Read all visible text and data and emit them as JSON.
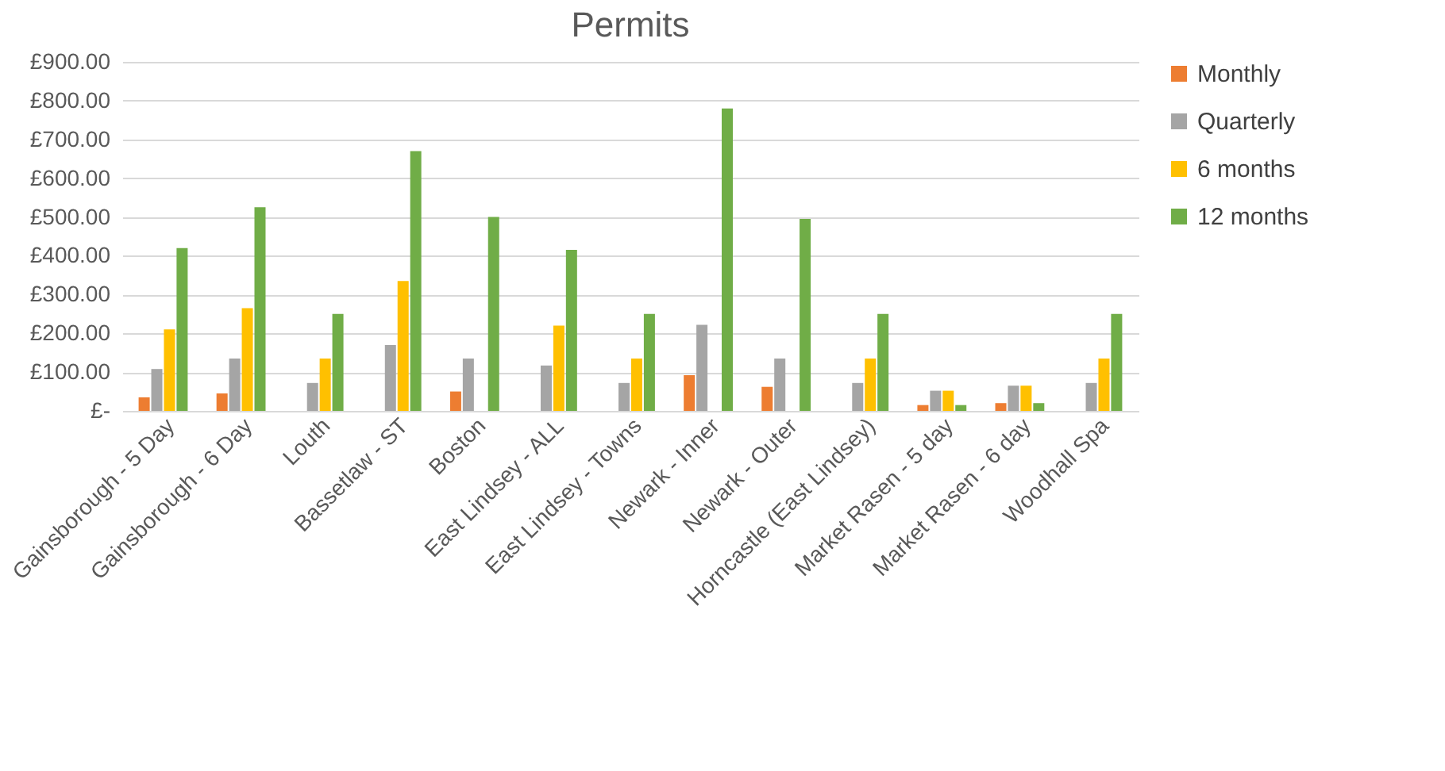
{
  "chart_data": {
    "type": "bar",
    "title": "Permits",
    "categories": [
      "Gainsborough - 5 Day",
      "Gainsborough - 6 Day",
      "Louth",
      "Bassetlaw - ST",
      "Boston",
      "East Lindsey - ALL",
      "East Lindsey - Towns",
      "Newark - Inner",
      "Newark - Outer",
      "Horncastle (East Lindsey)",
      "Market Rasen - 5 day",
      "Market Rasen - 6 day",
      "Woodhall Spa"
    ],
    "series": [
      {
        "name": "Monthly",
        "color": "#ed7d31",
        "values": [
          35,
          45,
          null,
          null,
          50,
          null,
          null,
          92,
          62,
          null,
          15,
          20,
          null
        ]
      },
      {
        "name": "Quarterly",
        "color": "#a5a5a5",
        "values": [
          108,
          135,
          72,
          170,
          135,
          117,
          72,
          222,
          135,
          72,
          52,
          65,
          72
        ]
      },
      {
        "name": "6 months",
        "color": "#ffc000",
        "values": [
          210,
          265,
          135,
          335,
          null,
          220,
          135,
          null,
          null,
          135,
          52,
          65,
          135
        ]
      },
      {
        "name": "12 months",
        "color": "#70ad47",
        "values": [
          420,
          525,
          250,
          670,
          500,
          415,
          250,
          780,
          495,
          250,
          15,
          20,
          250
        ]
      }
    ],
    "ylim": [
      0,
      900
    ],
    "yticks": [
      {
        "value": 0,
        "label": "£-"
      },
      {
        "value": 100,
        "label": "£100.00"
      },
      {
        "value": 200,
        "label": "£200.00"
      },
      {
        "value": 300,
        "label": "£300.00"
      },
      {
        "value": 400,
        "label": "£400.00"
      },
      {
        "value": 500,
        "label": "£500.00"
      },
      {
        "value": 600,
        "label": "£600.00"
      },
      {
        "value": 700,
        "label": "£700.00"
      },
      {
        "value": 800,
        "label": "£800.00"
      },
      {
        "value": 900,
        "label": "£900.00"
      }
    ],
    "grid": "y",
    "legend": "right"
  }
}
